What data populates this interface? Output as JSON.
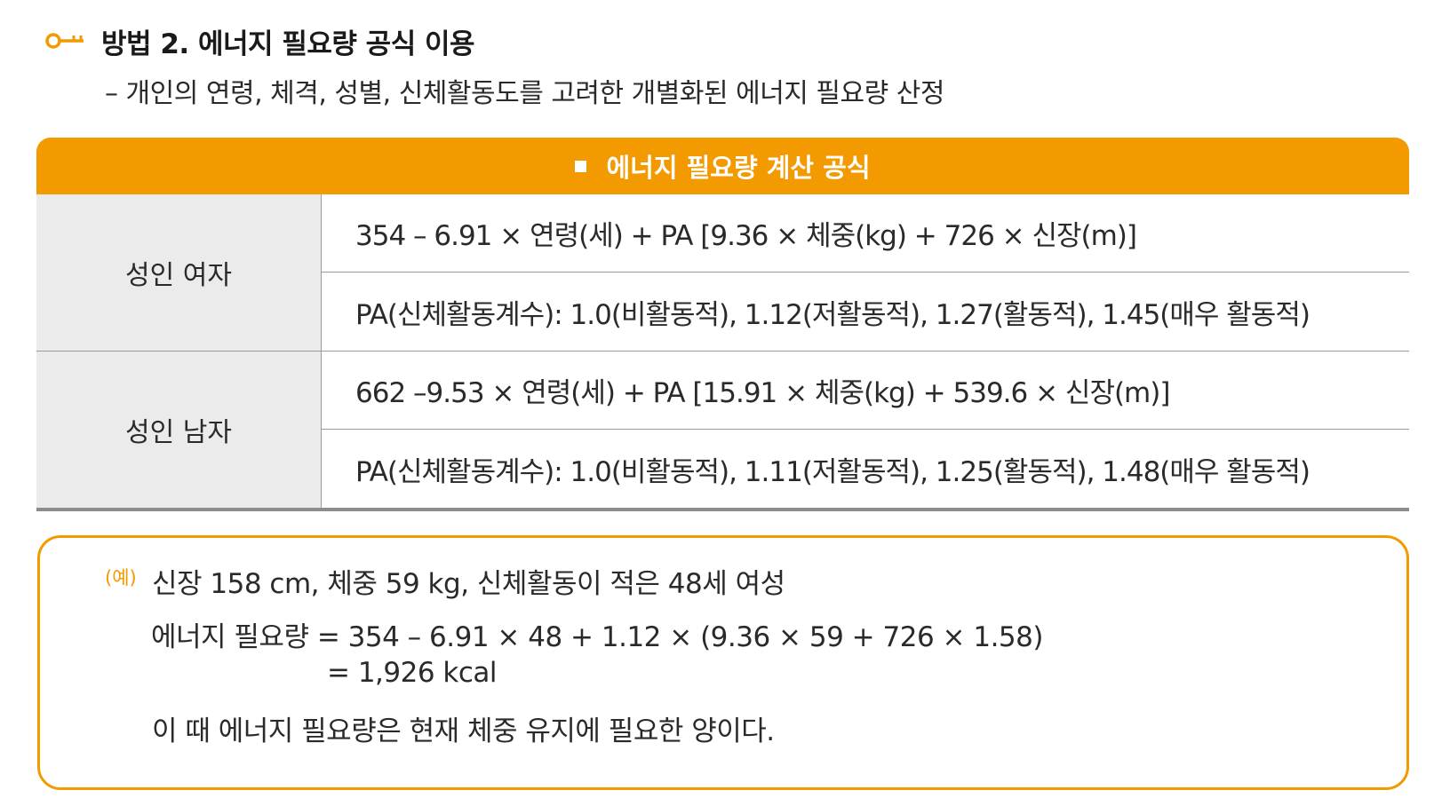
{
  "heading": {
    "title": "방법 2. 에너지 필요량 공식 이용",
    "subtitle": "– 개인의 연령, 체격, 성별, 신체활동도를 고려한 개별화된 에너지 필요량 산정"
  },
  "table": {
    "header": "에너지 필요량 계산 공식",
    "groups": [
      {
        "label": "성인 여자",
        "formula": "354 – 6.91 × 연령(세) + PA [9.36 × 체중(kg) + 726 × 신장(m)]",
        "pa": "PA(신체활동계수): 1.0(비활동적), 1.12(저활동적), 1.27(활동적), 1.45(매우 활동적)"
      },
      {
        "label": "성인 남자",
        "formula": "662 –9.53 × 연령(세) + PA [15.91 × 체중(kg) + 539.6 × 신장(m)]",
        "pa": "PA(신체활동계수): 1.0(비활동적), 1.11(저활동적), 1.25(활동적), 1.48(매우 활동적)"
      }
    ]
  },
  "example": {
    "tag": "(예)",
    "case": "신장 158 cm, 체중 59 kg, 신체활동이 적은 48세 여성",
    "equation": "에너지 필요량 = 354 – 6.91 × 48 + 1.12 × (9.36 × 59 + 726 × 1.58)",
    "result": "= 1,926 kcal",
    "note": "이 때 에너지 필요량은 현재 체중 유지에 필요한 양이다."
  },
  "colors": {
    "accent": "#f39a00",
    "label_bg": "#ebebeb",
    "rule": "#9a9a9a"
  },
  "icons": {
    "title_icon": "key-icon"
  }
}
